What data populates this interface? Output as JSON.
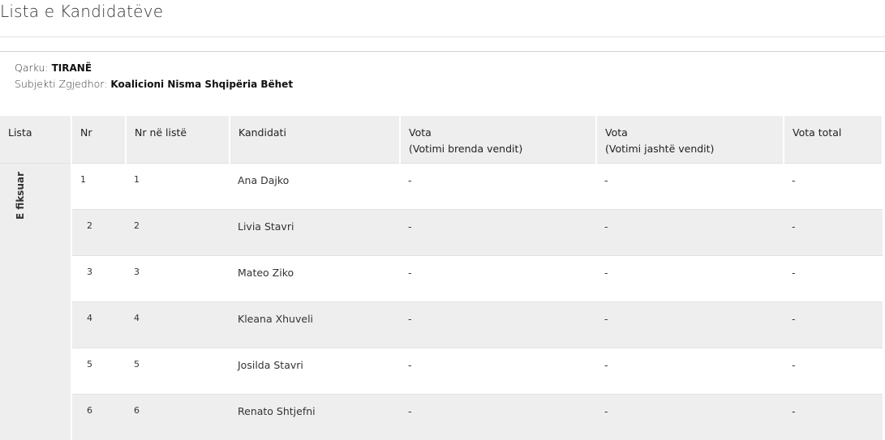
{
  "title": "Lista e Kandidatëve",
  "info": {
    "qarku_label": "Qarku:",
    "qarku": "TIRANË",
    "subjekti_label": "Subjekti Zgjedhor:",
    "subjekti": "Koalicioni Nisma Shqipëria Bëhet"
  },
  "table": {
    "headers": [
      "Lista",
      "Nr",
      "Nr në listë",
      "Kandidati",
      "Vota",
      "Vota",
      "Vota total"
    ],
    "subheaders": {
      "vota_brenda": "(Votimi brenda vendit)",
      "vota_jashte": "(Votimi jashtë vendit)"
    },
    "group_label": "E fiksuar",
    "rows": [
      {
        "nr": "1",
        "nr_liste": "1",
        "kandidati": "Ana Dajko",
        "brenda": "-",
        "jashte": "-",
        "total": "-"
      },
      {
        "nr": "2",
        "nr_liste": "2",
        "kandidati": "Livia Stavri",
        "brenda": "-",
        "jashte": "-",
        "total": "-"
      },
      {
        "nr": "3",
        "nr_liste": "3",
        "kandidati": "Mateo Ziko",
        "brenda": "-",
        "jashte": "-",
        "total": "-"
      },
      {
        "nr": "4",
        "nr_liste": "4",
        "kandidati": "Kleana Xhuveli",
        "brenda": "-",
        "jashte": "-",
        "total": "-"
      },
      {
        "nr": "5",
        "nr_liste": "5",
        "kandidati": "Josilda Stavri",
        "brenda": "-",
        "jashte": "-",
        "total": "-"
      },
      {
        "nr": "6",
        "nr_liste": "6",
        "kandidati": "Renato Shtjefni",
        "brenda": "-",
        "jashte": "-",
        "total": "-"
      }
    ]
  }
}
